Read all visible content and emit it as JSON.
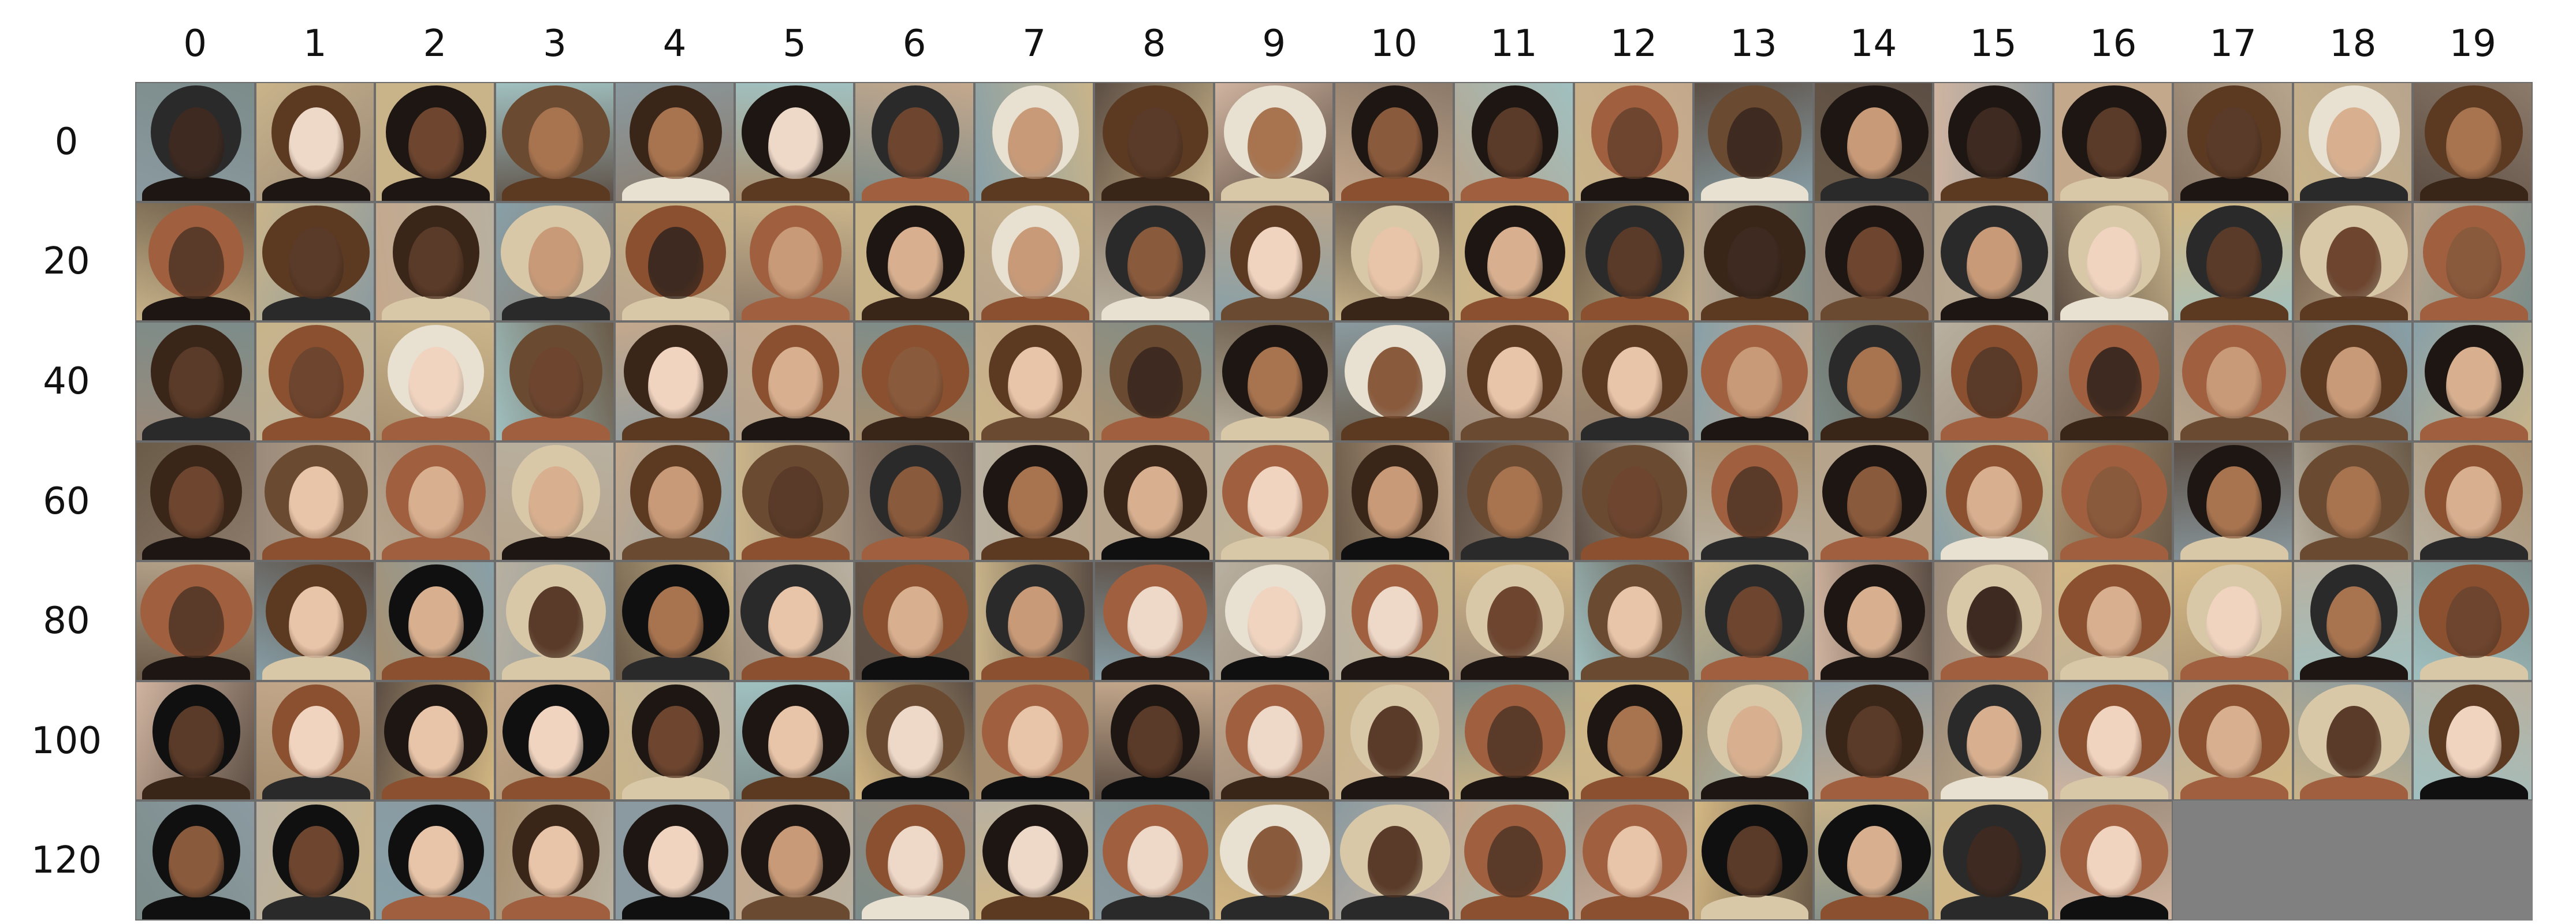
{
  "columns": [
    "0",
    "1",
    "2",
    "3",
    "4",
    "5",
    "6",
    "7",
    "8",
    "9",
    "10",
    "11",
    "12",
    "13",
    "14",
    "15",
    "16",
    "17",
    "18",
    "19"
  ],
  "rows": [
    "0",
    "20",
    "40",
    "60",
    "80",
    "100",
    "120"
  ],
  "images": {
    "count": 137,
    "icon": "portrait-thumbnail",
    "empty_slots": 3
  },
  "colors": {
    "background": "#ffffff",
    "grid_border": "#6c6c6c",
    "empty_cell": "#808080",
    "label_text": "#111111"
  }
}
